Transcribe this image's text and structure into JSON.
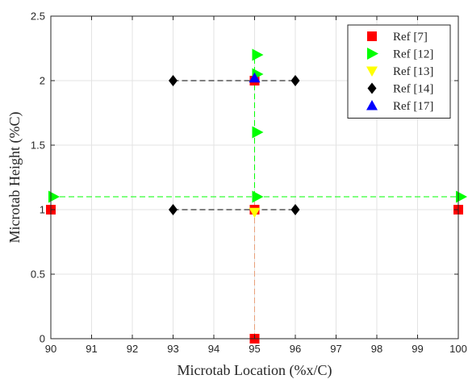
{
  "chart_data": {
    "type": "scatter",
    "xlabel": "Microtab Location (%x/C)",
    "ylabel": "Microtab Height (%C)",
    "xlim": [
      90,
      100
    ],
    "ylim": [
      0,
      2.5
    ],
    "x_ticks": [
      90,
      91,
      92,
      93,
      94,
      95,
      96,
      97,
      98,
      99,
      100
    ],
    "y_ticks": [
      0,
      0.5,
      1,
      1.5,
      2,
      2.5
    ],
    "grid": true,
    "legend_position": "top-right",
    "series": [
      {
        "name": "Ref [7]",
        "marker": "square",
        "color": "#ff0000",
        "line_color": "#e8a07a",
        "points": [
          [
            90,
            1
          ],
          [
            95,
            1
          ],
          [
            100,
            1
          ],
          [
            95,
            0
          ],
          [
            95,
            2
          ]
        ],
        "lines": [
          [
            [
              95,
              0
            ],
            [
              95,
              2
            ]
          ]
        ]
      },
      {
        "name": "Ref [12]",
        "marker": "triangle-right",
        "color": "#00ff00",
        "line_color": "#00ff00",
        "points": [
          [
            90,
            1.1
          ],
          [
            95,
            1.1
          ],
          [
            100,
            1.1
          ],
          [
            95,
            1.6
          ],
          [
            95,
            2.2
          ],
          [
            95,
            2.05
          ]
        ],
        "lines": [
          [
            [
              90,
              1.1
            ],
            [
              100,
              1.1
            ]
          ],
          [
            [
              95,
              1.1
            ],
            [
              95,
              2.2
            ]
          ]
        ]
      },
      {
        "name": "Ref [13]",
        "marker": "triangle-down",
        "color": "#ffff00",
        "points": [
          [
            95,
            0.98
          ]
        ],
        "lines": []
      },
      {
        "name": "Ref [14]",
        "marker": "diamond",
        "color": "#000000",
        "line_color": "#000000",
        "points": [
          [
            93,
            1
          ],
          [
            96,
            1
          ],
          [
            93,
            2
          ],
          [
            96,
            2
          ]
        ],
        "lines": [
          [
            [
              93,
              1
            ],
            [
              96,
              1
            ]
          ],
          [
            [
              93,
              2
            ],
            [
              96,
              2
            ]
          ]
        ]
      },
      {
        "name": "Ref [17]",
        "marker": "triangle-up",
        "color": "#0000ff",
        "points": [
          [
            95,
            2.02
          ]
        ],
        "lines": []
      }
    ]
  }
}
